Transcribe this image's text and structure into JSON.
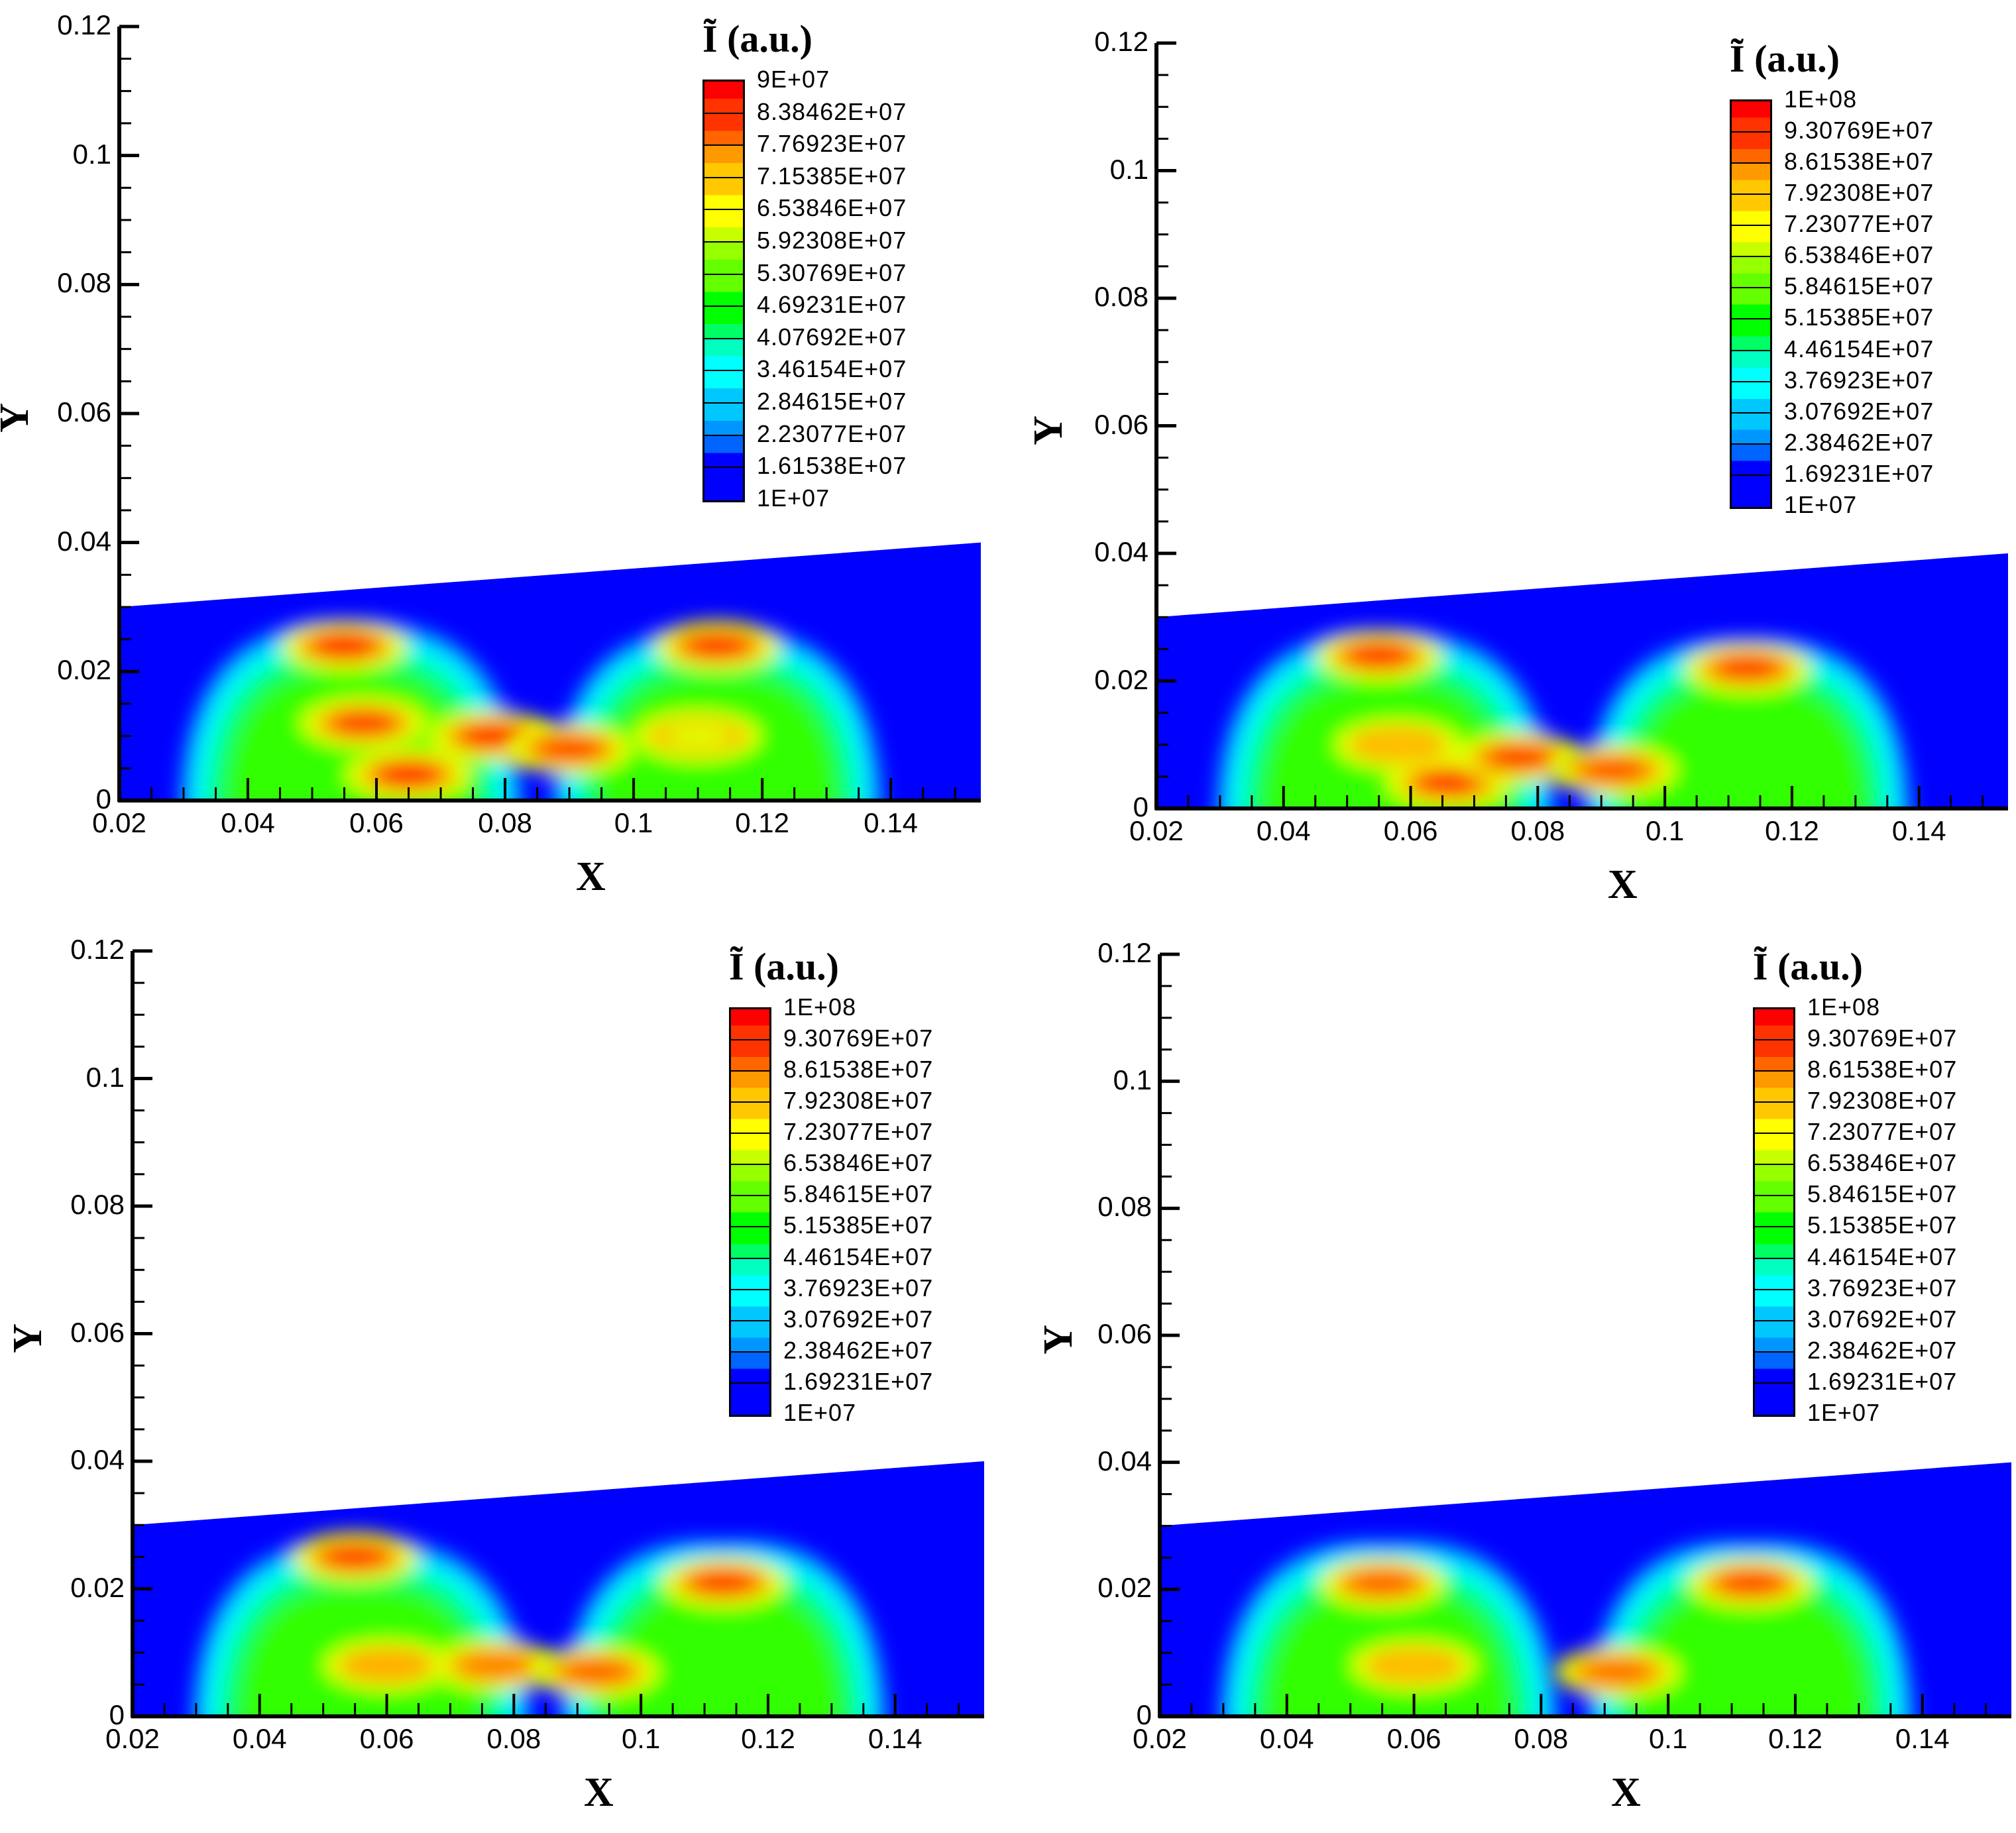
{
  "chart_data": [
    {
      "type": "heatmap",
      "panel": "top-left",
      "title": "",
      "xlabel": "X",
      "ylabel": "Y",
      "xlim": [
        0.02,
        0.154
      ],
      "ylim": [
        0,
        0.12
      ],
      "xticks": [
        "0.02",
        "0.04",
        "0.06",
        "0.08",
        "0.1",
        "0.12",
        "0.14"
      ],
      "yticks": [
        "0",
        "0.02",
        "0.04",
        "0.06",
        "0.08",
        "0.1",
        "0.12"
      ],
      "legend_title": "Ĩ (a.u.)",
      "legend_levels": [
        "9E+07",
        "8.38462E+07",
        "7.76923E+07",
        "7.15385E+07",
        "6.53846E+07",
        "5.92308E+07",
        "5.30769E+07",
        "4.69231E+07",
        "4.07692E+07",
        "3.46154E+07",
        "2.84615E+07",
        "2.23077E+07",
        "1.61538E+07",
        "1E+07"
      ],
      "colorbar_range": [
        10000000.0,
        90000000.0
      ],
      "domain_top_y": [
        0.03,
        0.04
      ],
      "plumes": [
        {
          "center_x": 0.056,
          "height": 0.028,
          "half_width": 0.027,
          "hotspots": [
            [
              0.055,
              0.024,
              "#ff0000"
            ],
            [
              0.058,
              0.012,
              "#ff3000"
            ],
            [
              0.065,
              0.004,
              "#ff0000"
            ],
            [
              0.078,
              0.01,
              "#ff1000"
            ]
          ]
        },
        {
          "center_x": 0.113,
          "height": 0.027,
          "half_width": 0.026,
          "hotspots": [
            [
              0.113,
              0.024,
              "#ff2000"
            ],
            [
              0.09,
              0.008,
              "#ff4000"
            ],
            [
              0.11,
              0.01,
              "#e0ff00"
            ]
          ]
        }
      ]
    },
    {
      "type": "heatmap",
      "panel": "top-right",
      "xlabel": "X",
      "ylabel": "Y",
      "xlim": [
        0.02,
        0.154
      ],
      "ylim": [
        0,
        0.12
      ],
      "xticks": [
        "0.02",
        "0.04",
        "0.06",
        "0.08",
        "0.1",
        "0.12",
        "0.14"
      ],
      "yticks": [
        "0",
        "0.02",
        "0.04",
        "0.06",
        "0.08",
        "0.1",
        "0.12"
      ],
      "legend_title": "Ĩ (a.u.)",
      "legend_levels": [
        "1E+08",
        "9.30769E+07",
        "8.61538E+07",
        "7.92308E+07",
        "7.23077E+07",
        "6.53846E+07",
        "5.84615E+07",
        "5.15385E+07",
        "4.46154E+07",
        "3.76923E+07",
        "3.07692E+07",
        "2.38462E+07",
        "1.69231E+07",
        "1E+07"
      ],
      "colorbar_range": [
        10000000.0,
        100000000.0
      ],
      "domain_top_y": [
        0.03,
        0.04
      ],
      "plumes": [
        {
          "center_x": 0.056,
          "height": 0.028,
          "half_width": 0.027,
          "hotspots": [
            [
              0.055,
              0.024,
              "#ff2000"
            ],
            [
              0.058,
              0.01,
              "#ffc000"
            ],
            [
              0.066,
              0.004,
              "#ff2000"
            ],
            [
              0.077,
              0.008,
              "#ff3000"
            ]
          ]
        },
        {
          "center_x": 0.113,
          "height": 0.027,
          "half_width": 0.026,
          "hotspots": [
            [
              0.113,
              0.022,
              "#ff3000"
            ],
            [
              0.092,
              0.006,
              "#ff5000"
            ]
          ]
        }
      ]
    },
    {
      "type": "heatmap",
      "panel": "bottom-left",
      "xlabel": "X",
      "ylabel": "Y",
      "xlim": [
        0.02,
        0.154
      ],
      "ylim": [
        0,
        0.12
      ],
      "xticks": [
        "0.02",
        "0.04",
        "0.06",
        "0.08",
        "0.1",
        "0.12",
        "0.14"
      ],
      "yticks": [
        "0",
        "0.02",
        "0.04",
        "0.06",
        "0.08",
        "0.1",
        "0.12"
      ],
      "legend_title": "Ĩ (a.u.)",
      "legend_levels": [
        "1E+08",
        "9.30769E+07",
        "8.61538E+07",
        "7.92308E+07",
        "7.23077E+07",
        "6.53846E+07",
        "5.84615E+07",
        "5.15385E+07",
        "4.46154E+07",
        "3.76923E+07",
        "3.07692E+07",
        "2.38462E+07",
        "1.69231E+07",
        "1E+07"
      ],
      "colorbar_range": [
        10000000.0,
        100000000.0
      ],
      "domain_top_y": [
        0.03,
        0.04
      ],
      "plumes": [
        {
          "center_x": 0.056,
          "height": 0.028,
          "half_width": 0.027,
          "hotspots": [
            [
              0.055,
              0.025,
              "#ff3000"
            ],
            [
              0.06,
              0.008,
              "#ffb000"
            ],
            [
              0.077,
              0.008,
              "#ff8000"
            ]
          ]
        },
        {
          "center_x": 0.113,
          "height": 0.028,
          "half_width": 0.026,
          "hotspots": [
            [
              0.113,
              0.021,
              "#ff3000"
            ],
            [
              0.093,
              0.007,
              "#ff6000"
            ]
          ]
        }
      ]
    },
    {
      "type": "heatmap",
      "panel": "bottom-right",
      "xlabel": "X",
      "ylabel": "Y",
      "xlim": [
        0.02,
        0.154
      ],
      "ylim": [
        0,
        0.12
      ],
      "xticks": [
        "0.02",
        "0.04",
        "0.06",
        "0.08",
        "0.1",
        "0.12",
        "0.14"
      ],
      "yticks": [
        "0",
        "0.02",
        "0.04",
        "0.06",
        "0.08",
        "0.1",
        "0.12"
      ],
      "legend_title": "Ĩ (a.u.)",
      "legend_levels": [
        "1E+08",
        "9.30769E+07",
        "8.61538E+07",
        "7.92308E+07",
        "7.23077E+07",
        "6.53846E+07",
        "5.84615E+07",
        "5.15385E+07",
        "4.46154E+07",
        "3.76923E+07",
        "3.07692E+07",
        "2.38462E+07",
        "1.69231E+07",
        "1E+07"
      ],
      "colorbar_range": [
        10000000.0,
        100000000.0
      ],
      "domain_top_y": [
        0.03,
        0.04
      ],
      "plumes": [
        {
          "center_x": 0.056,
          "height": 0.028,
          "half_width": 0.027,
          "hotspots": [
            [
              0.055,
              0.021,
              "#ff6000"
            ],
            [
              0.06,
              0.008,
              "#ffc000"
            ]
          ]
        },
        {
          "center_x": 0.113,
          "height": 0.028,
          "half_width": 0.026,
          "hotspots": [
            [
              0.113,
              0.021,
              "#ff4000"
            ],
            [
              0.092,
              0.007,
              "#ff7000"
            ]
          ]
        }
      ]
    }
  ],
  "colormap": [
    "#ff0000",
    "#ff3300",
    "#ff6600",
    "#ff9900",
    "#ffc800",
    "#ffff00",
    "#c8ff00",
    "#96ff00",
    "#64ff00",
    "#00ff00",
    "#00ff64",
    "#00ffc0",
    "#00ffff",
    "#00c8ff",
    "#0096ff",
    "#0064ff",
    "#0000ff"
  ],
  "background_field_color": "#0000ff",
  "axis": {
    "x_title": "X",
    "y_title": "Y"
  }
}
